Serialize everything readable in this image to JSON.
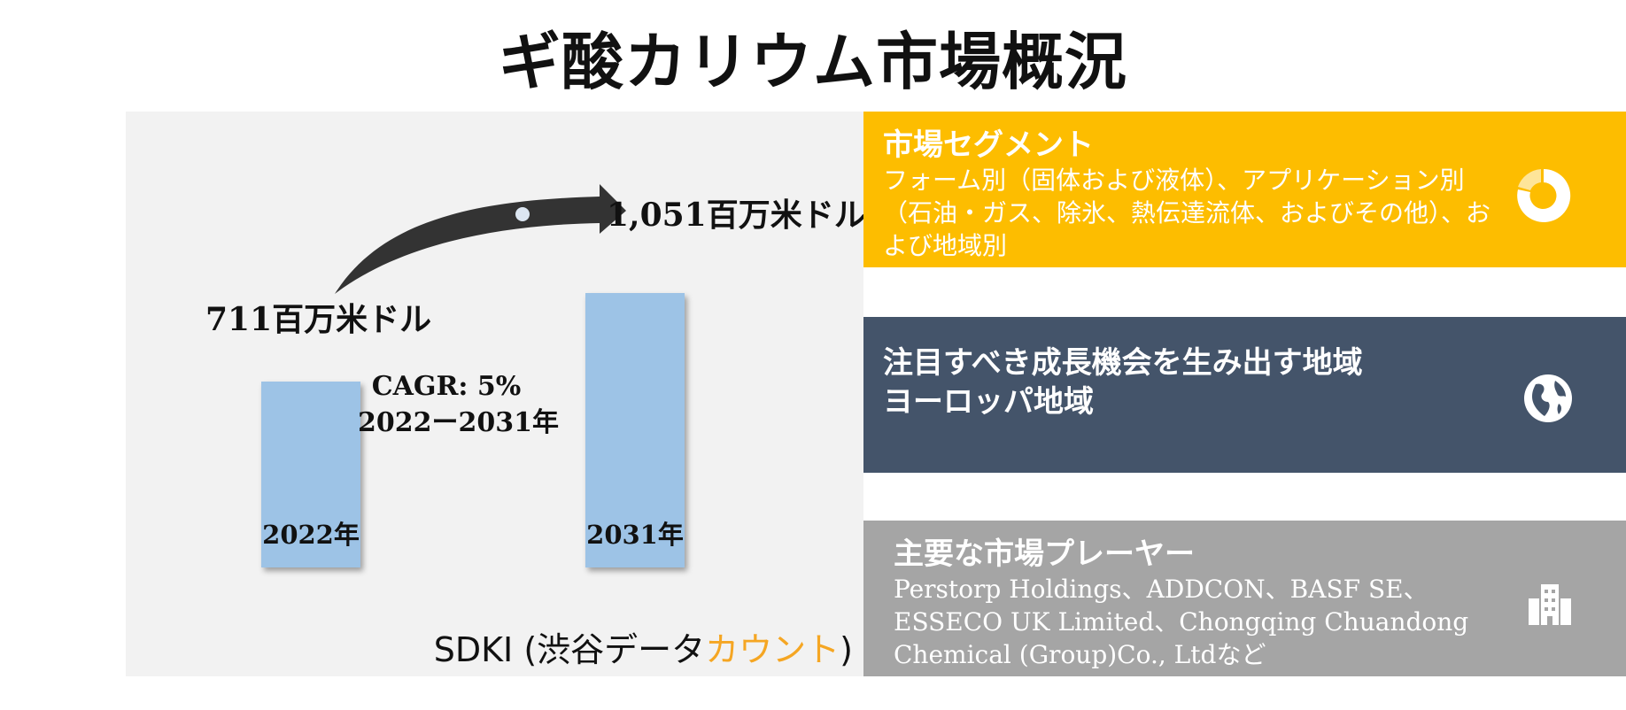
{
  "title": "ギ酸カリウム市場概況",
  "chart_data": {
    "type": "bar",
    "categories": [
      "2022年",
      "2031年"
    ],
    "values": [
      711,
      1051
    ],
    "value_labels": [
      "711百万米ドル",
      "1,051百万米ドル"
    ],
    "ylim": [
      0,
      1200
    ],
    "cagr": "CAGR: 5%",
    "period": "2022ー2031年",
    "bar_color": "#9dc3e6",
    "arrow_color": "#333333"
  },
  "source": {
    "prefix": "SDKI (渋谷データ",
    "accent": "カウント",
    "suffix": ")",
    "accent_color": "#f5a623"
  },
  "segments": {
    "title": "市場セグメント",
    "body": "フォーム別（固体および液体）、アプリケーション別（石油・ガス、除氷、熱伝達流体、およびその他）、および地域別",
    "color": "#fdbd00",
    "icon": "donut-chart-icon"
  },
  "region": {
    "title": "注目すべき成長機会を生み出す地域",
    "body": "ヨーロッパ地域",
    "color": "#44546a",
    "icon": "globe-icon"
  },
  "players": {
    "title": "主要な市場プレーヤー",
    "body": "Perstorp Holdings、ADDCON、BASF SE、ESSECO UK Limited、Chongqing Chuandong Chemical (Group)Co., Ltdなど",
    "color": "#a5a5a5",
    "icon": "building-icon"
  }
}
